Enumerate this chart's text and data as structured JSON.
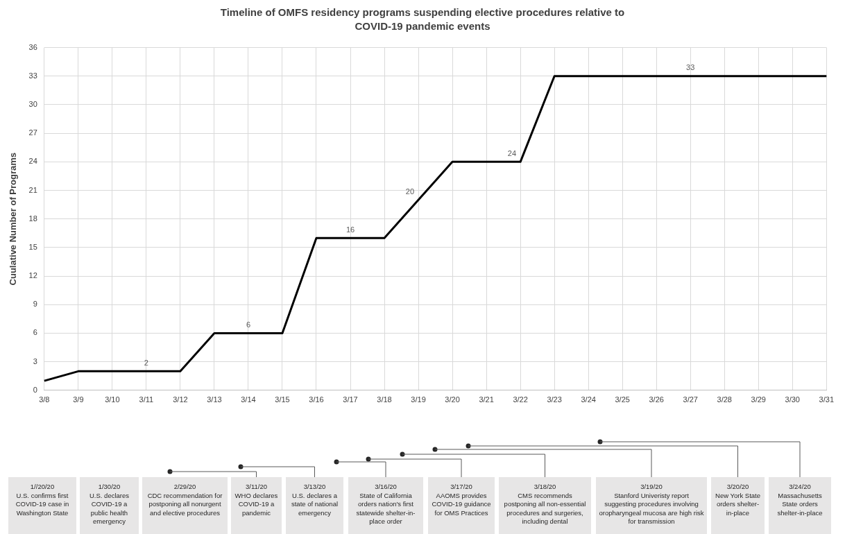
{
  "chart_data": {
    "type": "line",
    "title": "Timeline of OMFS residency programs suspending elective procedures relative to COVID-19 pandemic events",
    "ylabel": "Cuulative Number of Programs",
    "categories": [
      "3/8",
      "3/9",
      "3/10",
      "3/11",
      "3/12",
      "3/13",
      "3/14",
      "3/15",
      "3/16",
      "3/17",
      "3/18",
      "3/19",
      "3/20",
      "3/21",
      "3/22",
      "3/23",
      "3/24",
      "3/25",
      "3/26",
      "3/27",
      "3/28",
      "3/29",
      "3/30",
      "3/31"
    ],
    "series": [
      {
        "color": "#000000",
        "values": [
          1,
          2,
          2,
          2,
          2,
          6,
          6,
          6,
          16,
          16,
          16,
          20,
          24,
          24,
          24,
          33,
          33,
          33,
          33,
          33,
          33,
          33,
          33,
          33
        ],
        "value_labels": [
          null,
          null,
          null,
          "2",
          null,
          null,
          "6",
          null,
          null,
          "16",
          null,
          "20",
          null,
          null,
          "24",
          null,
          null,
          null,
          null,
          "33",
          null,
          null,
          null,
          null
        ]
      }
    ],
    "ylim": [
      0,
      36
    ],
    "yticks": [
      0,
      3,
      6,
      9,
      12,
      15,
      18,
      21,
      24,
      27,
      30,
      33,
      36
    ],
    "grid": true,
    "legend": false,
    "marker": "none",
    "line_style": "solid",
    "annotations": [
      "1//20/20\nU.S. confirms first COVID-19 case in Washington State",
      "1/30/20\nU.S. declares COVID-19 a public health emergency",
      "2/29/20\nCDC recommendation for postponing all nonurgent and elective procedures",
      "3/11/20\nWHO declares COVID-19 a pandemic",
      "3/13/20\nU.S. declares a state of national emergency",
      "3/16/20\nState of California orders nation's first statewide shelter-in-place order",
      "3/17/20\nAAOMS provides COVID-19 guidance for OMS Practices",
      "3/18/20\nCMS recommends postponing all non-essential procedures and surgeries, including dental",
      "3/19/20\nStanford Univeristy report suggesting procedures involving oropharyngeal mucosa are high risk for transmission",
      "3/20/20\nNew York State orders shelter-in-place",
      "3/24/20\nMassachusetts State orders shelter-in-place"
    ]
  }
}
